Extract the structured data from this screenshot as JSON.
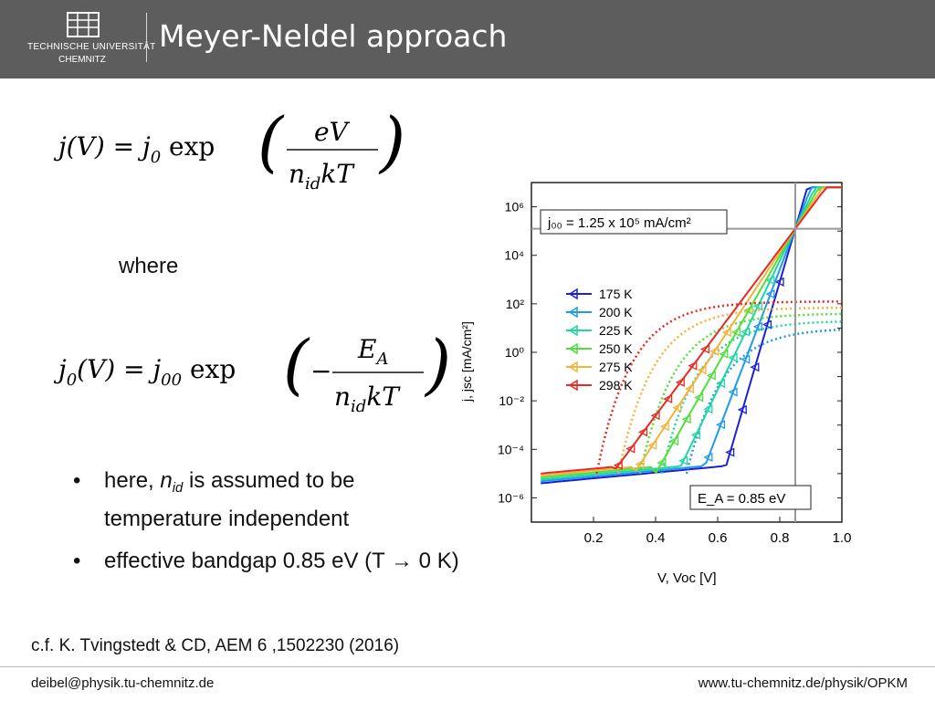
{
  "header": {
    "title": "Meyer-Neldel approach",
    "logo_line1": "TECHNISCHE UNIVERSITÄT",
    "logo_line2": "CHEMNITZ"
  },
  "equations": {
    "eq1": "j(V) = j₀ exp( eV / (n_id kT) )",
    "eq2": "j₀(V) = j₀₀ exp( −E_A / (n_id kT) )"
  },
  "where_text": "where",
  "bullets": [
    {
      "text_before": "here, ",
      "symbol": "n",
      "symbol_sub": "id",
      "text_after": " is assumed to be",
      "line2": "temperature independent"
    },
    {
      "text": "effective bandgap 0.85 eV (T → 0 K)"
    }
  ],
  "citation": "c.f. K. Tvingstedt & CD, AEM 6 ,1502230 (2016)",
  "footer": {
    "left": "deibel@physik.tu-chemnitz.de",
    "right": "www.tu-chemnitz.de/physik/OPKM"
  },
  "chart_data": {
    "type": "line",
    "xlabel": "V, Voc [V]",
    "ylabel": "j, jsc [mA/cm²]",
    "xlim": [
      0.0,
      1.0
    ],
    "ylim_log10": [
      -7,
      7
    ],
    "y_scale": "log",
    "x_ticks": [
      "0.2",
      "0.4",
      "0.6",
      "0.8",
      "1.0"
    ],
    "y_ticks": [
      "10⁻⁶",
      "10⁻⁴",
      "10⁻²",
      "10⁰",
      "10²",
      "10⁴",
      "10⁶"
    ],
    "annotation_top": "j₀₀ = 1.25 x 10⁵ mA/cm²",
    "annotation_bottom": "E_A = 0.85 eV",
    "crosshair": {
      "x": 0.85,
      "y": 125000
    },
    "legend_position": "center-left",
    "series": [
      {
        "name": "175 K",
        "color": "#1d1fd8",
        "v_onset": 0.62,
        "sat_log10": null
      },
      {
        "name": "200 K",
        "color": "#1e9bea",
        "v_onset": 0.55,
        "sat_log10": 1.0
      },
      {
        "name": "225 K",
        "color": "#1fd6a0",
        "v_onset": 0.47,
        "sat_log10": 1.3
      },
      {
        "name": "250 K",
        "color": "#4fe03a",
        "v_onset": 0.4,
        "sat_log10": 1.6
      },
      {
        "name": "275 K",
        "color": "#f4b23a",
        "v_onset": 0.33,
        "sat_log10": 1.85
      },
      {
        "name": "298 K",
        "color": "#e82a22",
        "v_onset": 0.26,
        "sat_log10": 2.1
      }
    ]
  }
}
